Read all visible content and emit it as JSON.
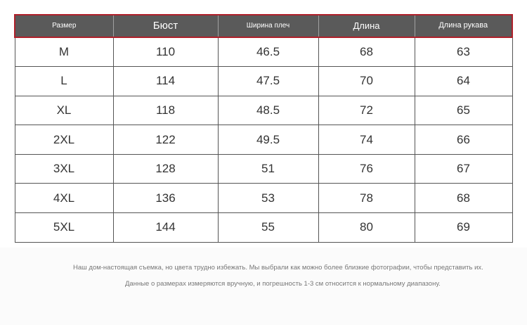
{
  "table": {
    "headers": [
      "Размер",
      "Бюст",
      "Ширина плеч",
      "Длина",
      "Длина рукава"
    ],
    "rows": [
      [
        "M",
        "110",
        "46.5",
        "68",
        "63"
      ],
      [
        "L",
        "114",
        "47.5",
        "70",
        "64"
      ],
      [
        "XL",
        "118",
        "48.5",
        "72",
        "65"
      ],
      [
        "2XL",
        "122",
        "49.5",
        "74",
        "66"
      ],
      [
        "3XL",
        "128",
        "51",
        "76",
        "67"
      ],
      [
        "4XL",
        "136",
        "53",
        "78",
        "68"
      ],
      [
        "5XL",
        "144",
        "55",
        "80",
        "69"
      ]
    ]
  },
  "notes": {
    "line1": "Наш дом-настоящая съемка, но цвета трудно избежать. Мы выбрали как можно более близкие фотографии, чтобы представить их.",
    "line2": "Данные о размерах измеряются вручную, и погрешность 1-3 см относится к нормальному диапазону."
  },
  "colors": {
    "header_bg": "#5a5a5a",
    "header_border": "#b0202a",
    "grid": "#555555"
  }
}
